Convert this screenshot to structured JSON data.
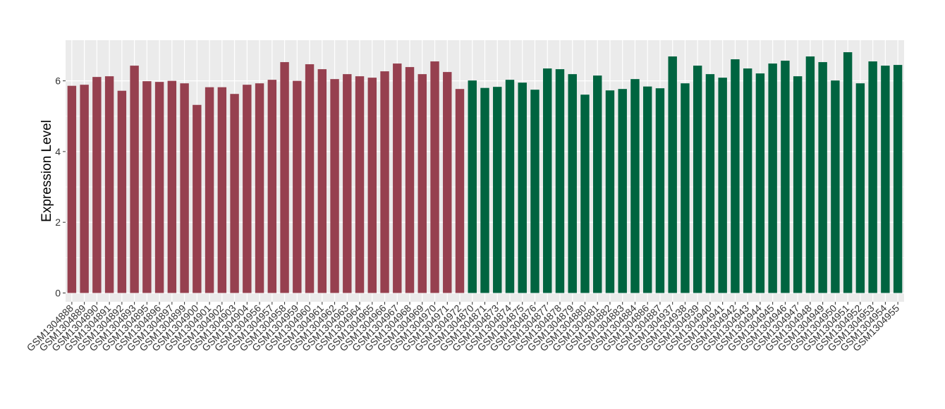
{
  "chart_data": {
    "type": "bar",
    "title": "",
    "xlabel": "",
    "ylabel": "Expression Level",
    "ylim": [
      -0.25,
      7.15
    ],
    "yticks": [
      0,
      2,
      4,
      6
    ],
    "grid": true,
    "background_color": "#EBEBEB",
    "categories": [
      "GSM1304888",
      "GSM1304889",
      "GSM1304890",
      "GSM1304891",
      "GSM1304892",
      "GSM1304893",
      "GSM1304895",
      "GSM1304896",
      "GSM1304897",
      "GSM1304899",
      "GSM1304900",
      "GSM1304901",
      "GSM1304902",
      "GSM1304903",
      "GSM1304904",
      "GSM1304956",
      "GSM1304957",
      "GSM1304958",
      "GSM1304959",
      "GSM1304960",
      "GSM1304961",
      "GSM1304962",
      "GSM1304963",
      "GSM1304964",
      "GSM1304965",
      "GSM1304966",
      "GSM1304967",
      "GSM1304968",
      "GSM1304969",
      "GSM1304970",
      "GSM1304971",
      "GSM1304972",
      "GSM1304870",
      "GSM1304871",
      "GSM1304873",
      "GSM1304874",
      "GSM1304875",
      "GSM1304876",
      "GSM1304877",
      "GSM1304878",
      "GSM1304879",
      "GSM1304880",
      "GSM1304881",
      "GSM1304882",
      "GSM1304883",
      "GSM1304884",
      "GSM1304886",
      "GSM1304887",
      "GSM1304937",
      "GSM1304938",
      "GSM1304939",
      "GSM1304940",
      "GSM1304941",
      "GSM1304942",
      "GSM1304943",
      "GSM1304944",
      "GSM1304945",
      "GSM1304946",
      "GSM1304947",
      "GSM1304948",
      "GSM1304949",
      "GSM1304950",
      "GSM1304951",
      "GSM1304952",
      "GSM1304953",
      "GSM1304954",
      "GSM1304955"
    ],
    "values": [
      5.86,
      5.89,
      6.11,
      6.13,
      5.72,
      6.43,
      5.99,
      5.97,
      6.0,
      5.93,
      5.32,
      5.82,
      5.82,
      5.63,
      5.89,
      5.93,
      6.03,
      6.53,
      6.0,
      6.47,
      6.33,
      6.05,
      6.19,
      6.13,
      6.09,
      6.27,
      6.49,
      6.39,
      6.19,
      6.55,
      6.25,
      5.77,
      6.01,
      5.8,
      5.83,
      6.03,
      5.95,
      5.75,
      6.35,
      6.33,
      6.19,
      5.61,
      6.15,
      5.73,
      5.77,
      6.05,
      5.84,
      5.79,
      6.69,
      5.93,
      6.43,
      6.19,
      6.09,
      6.61,
      6.35,
      6.21,
      6.49,
      6.57,
      6.13,
      6.69,
      6.53,
      6.01,
      6.81,
      5.93,
      6.55,
      6.43,
      6.45
    ],
    "groups": [
      {
        "count": 32,
        "color": "#96404F"
      },
      {
        "count": 35,
        "color": "#006440"
      }
    ]
  }
}
